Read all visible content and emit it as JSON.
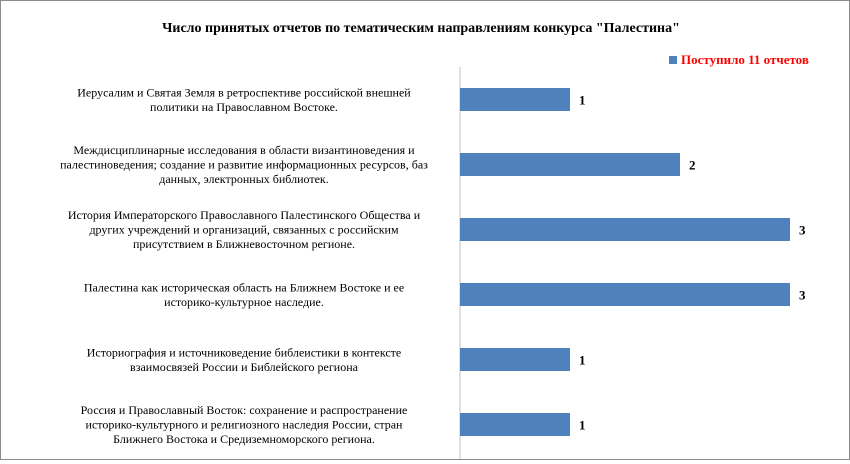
{
  "chart_data": {
    "type": "bar",
    "orientation": "horizontal",
    "title": "Число принятых отчетов по тематическим  направлениям конкурса \"Палестина\"",
    "legend": {
      "label": "Поступило  11 отчетов",
      "position": "top-right",
      "color": "#4f81bd",
      "text_color": "#ff0000"
    },
    "xlim": [
      0,
      3.4
    ],
    "grid": false,
    "bar_color": "#4f81bd",
    "categories": [
      [
        "Иерусалим  и Святая Земля в ретроспективе российской внешней",
        "политики на Православном Востоке."
      ],
      [
        "Междисциплинарные  исследования в области византиноведения и",
        "палестиноведения; создание и развитие информационных ресурсов, баз",
        "данных, электронных библиотек."
      ],
      [
        "История Императорского Православного Палестинского Общества и",
        "других учреждений и организаций, связанных с российским",
        "присутствием  в Ближневосточном регионе."
      ],
      [
        "Палестина как историческая область на Ближнем Востоке и ее",
        "историко-культурное  наследие."
      ],
      [
        "Историография и источниковедение библеистики в контексте",
        "взаимосвязей России и Библейского региона"
      ],
      [
        "Россия и Православный Восток: сохранение  и распространение",
        "историко-культурного  и религиозного наследия России, стран",
        "Ближнего Востока и Средиземноморского региона."
      ]
    ],
    "values": [
      1,
      2,
      3,
      3,
      1,
      1
    ],
    "data_labels": [
      "1",
      "2",
      "3",
      "3",
      "1",
      "1"
    ]
  }
}
